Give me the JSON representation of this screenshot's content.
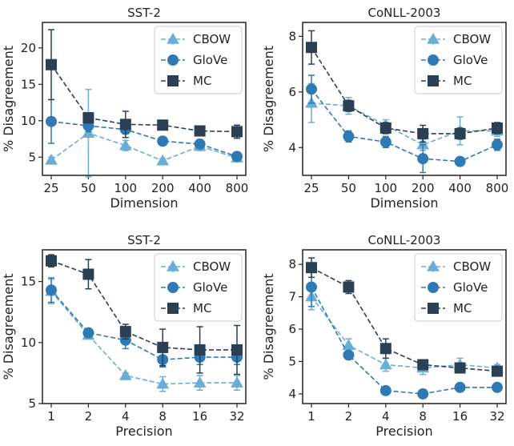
{
  "chart_data": [
    {
      "type": "line",
      "title": "SST-2",
      "xlabel": "Dimension",
      "ylabel": "% Disagreement",
      "x_scale": "log2",
      "categories": [
        "25",
        "50",
        "100",
        "200",
        "400",
        "800"
      ],
      "ylim": [
        2.5,
        23.5
      ],
      "yticks": [
        5,
        10,
        15,
        20
      ],
      "yticklabels": [
        "5",
        "10",
        "15",
        "20"
      ],
      "grid": false,
      "legend": "top-right",
      "series": [
        {
          "name": "CBOW",
          "marker": "triangle",
          "color": "#6aaed6",
          "values": [
            4.6,
            8.3,
            6.6,
            4.5,
            6.5,
            4.9
          ],
          "errors": [
            0.4,
            6.0,
            0.7,
            0.3,
            0.6,
            0.3
          ]
        },
        {
          "name": "GloVe",
          "marker": "circle",
          "color": "#2f79b5",
          "values": [
            9.9,
            9.3,
            8.8,
            7.2,
            6.8,
            5.1
          ],
          "errors": [
            3.0,
            0.8,
            0.6,
            0.4,
            0.5,
            0.3
          ]
        },
        {
          "name": "MC",
          "marker": "square",
          "color": "#2b3f55",
          "values": [
            17.7,
            10.4,
            9.5,
            9.4,
            8.6,
            8.5
          ],
          "errors": [
            4.8,
            0.7,
            1.8,
            0.5,
            0.5,
            0.9
          ]
        }
      ]
    },
    {
      "type": "line",
      "title": "CoNLL-2003",
      "xlabel": "Dimension",
      "ylabel": "% Disagreement",
      "x_scale": "log2",
      "categories": [
        "25",
        "50",
        "100",
        "200",
        "400",
        "800"
      ],
      "ylim": [
        3.0,
        8.5
      ],
      "yticks": [
        4,
        6,
        8
      ],
      "yticklabels": [
        "4",
        "6",
        "8"
      ],
      "grid": false,
      "legend": "top-right",
      "series": [
        {
          "name": "CBOW",
          "marker": "triangle",
          "color": "#6aaed6",
          "values": [
            5.6,
            5.5,
            4.8,
            4.1,
            4.6,
            4.6
          ],
          "errors": [
            0.7,
            0.3,
            0.2,
            0.2,
            0.5,
            0.2
          ]
        },
        {
          "name": "GloVe",
          "marker": "circle",
          "color": "#2f79b5",
          "values": [
            6.1,
            4.4,
            4.2,
            3.6,
            3.5,
            4.1
          ],
          "errors": [
            0.5,
            0.2,
            0.2,
            0.5,
            0.1,
            0.2
          ]
        },
        {
          "name": "MC",
          "marker": "square",
          "color": "#2b3f55",
          "values": [
            7.6,
            5.5,
            4.7,
            4.5,
            4.5,
            4.7
          ],
          "errors": [
            0.6,
            0.2,
            0.2,
            0.3,
            0.2,
            0.2
          ]
        }
      ]
    },
    {
      "type": "line",
      "title": "SST-2",
      "xlabel": "Precision",
      "ylabel": "% Disagreement",
      "x_scale": "log2",
      "categories": [
        "1",
        "2",
        "4",
        "8",
        "16",
        "32"
      ],
      "ylim": [
        5.0,
        17.6
      ],
      "yticks": [
        5,
        10,
        15
      ],
      "yticklabels": [
        "5",
        "10",
        "15"
      ],
      "grid": false,
      "legend": "top-right",
      "series": [
        {
          "name": "CBOW",
          "marker": "triangle",
          "color": "#6aaed6",
          "values": [
            14.2,
            10.6,
            7.3,
            6.6,
            6.7,
            6.7
          ],
          "errors": [
            1.0,
            0.2,
            0.2,
            0.6,
            0.6,
            0.6
          ]
        },
        {
          "name": "GloVe",
          "marker": "circle",
          "color": "#2f79b5",
          "values": [
            14.3,
            10.8,
            10.2,
            8.6,
            8.8,
            8.8
          ],
          "errors": [
            1.0,
            0.3,
            0.7,
            0.6,
            0.6,
            0.6
          ]
        },
        {
          "name": "MC",
          "marker": "square",
          "color": "#2b3f55",
          "values": [
            16.7,
            15.6,
            10.9,
            9.6,
            9.4,
            9.4
          ],
          "errors": [
            0.5,
            1.2,
            0.6,
            1.5,
            1.9,
            2.0
          ]
        }
      ]
    },
    {
      "type": "line",
      "title": "CoNLL-2003",
      "xlabel": "Precision",
      "ylabel": "% Disagreement",
      "x_scale": "log2",
      "categories": [
        "1",
        "2",
        "4",
        "8",
        "16",
        "32"
      ],
      "ylim": [
        3.7,
        8.45
      ],
      "yticks": [
        4,
        5,
        6,
        7,
        8
      ],
      "yticklabels": [
        "4",
        "5",
        "6",
        "7",
        "8"
      ],
      "grid": false,
      "legend": "top-right",
      "series": [
        {
          "name": "CBOW",
          "marker": "triangle",
          "color": "#6aaed6",
          "values": [
            7.0,
            5.5,
            4.9,
            4.8,
            4.9,
            4.8
          ],
          "errors": [
            0.4,
            0.2,
            0.2,
            0.2,
            0.2,
            0.1
          ]
        },
        {
          "name": "GloVe",
          "marker": "circle",
          "color": "#2f79b5",
          "values": [
            7.3,
            5.2,
            4.1,
            4.0,
            4.2,
            4.2
          ],
          "errors": [
            0.6,
            0.1,
            0.05,
            0.05,
            0.1,
            0.1
          ]
        },
        {
          "name": "MC",
          "marker": "square",
          "color": "#2b3f55",
          "values": [
            7.9,
            7.3,
            5.4,
            4.9,
            4.8,
            4.7
          ],
          "errors": [
            0.3,
            0.2,
            0.3,
            0.1,
            0.1,
            0.1
          ]
        }
      ]
    }
  ]
}
